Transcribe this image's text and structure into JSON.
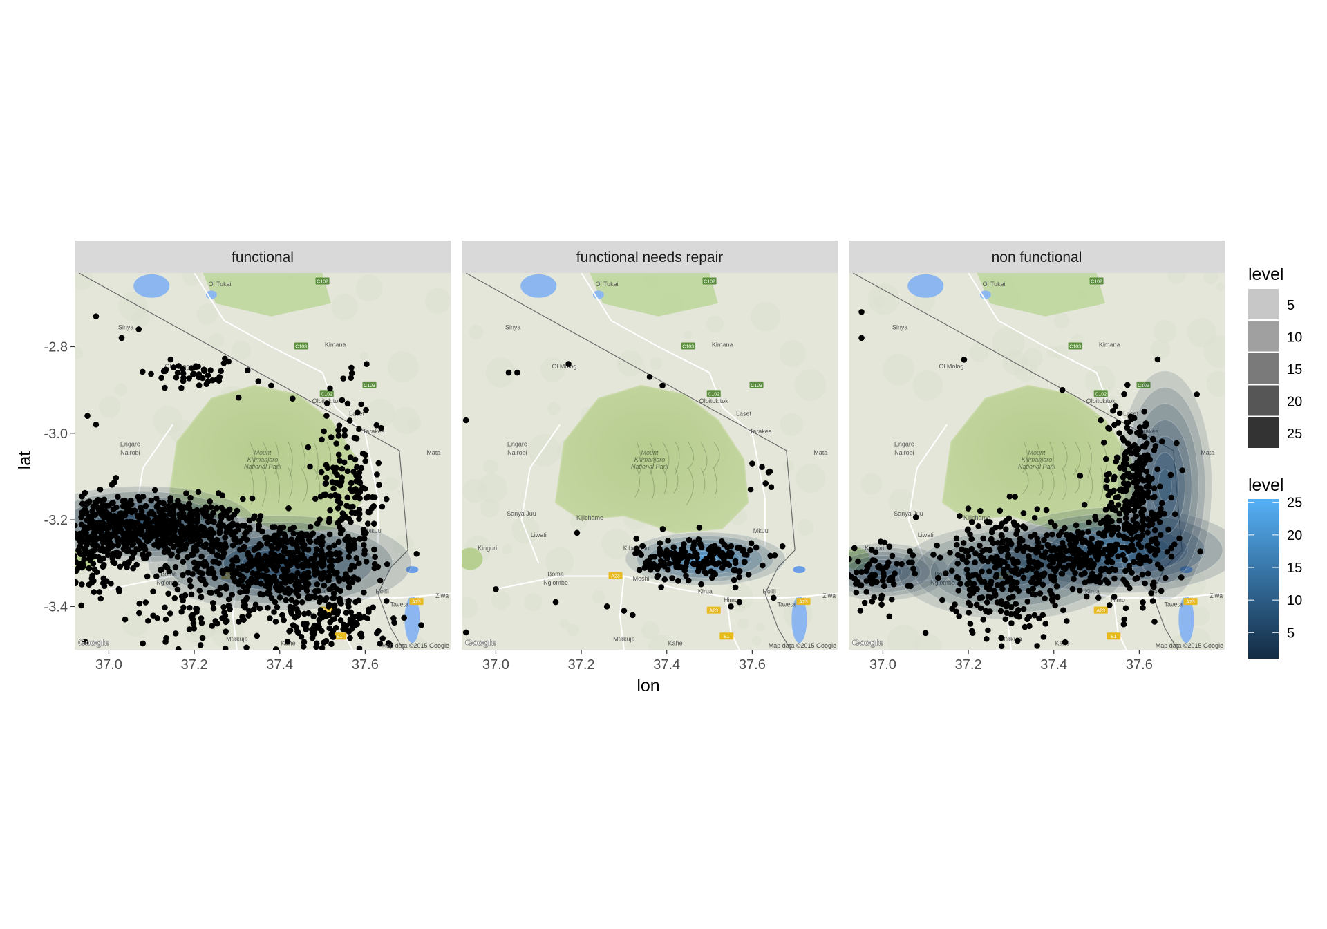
{
  "chart_data": {
    "type": "scatter",
    "xlabel": "lon",
    "ylabel": "lat",
    "xlim": [
      36.92,
      37.8
    ],
    "ylim": [
      -3.5,
      -2.63
    ],
    "x_ticks": [
      {
        "value": 37.0,
        "label": "37.0"
      },
      {
        "value": 37.2,
        "label": "37.2"
      },
      {
        "value": 37.4,
        "label": "37.4"
      },
      {
        "value": 37.6,
        "label": "37.6"
      }
    ],
    "y_ticks": [
      {
        "value": -2.8,
        "label": "-2.8"
      },
      {
        "value": -3.0,
        "label": "-3.0"
      },
      {
        "value": -3.2,
        "label": "-3.2"
      },
      {
        "value": -3.4,
        "label": "-3.4"
      }
    ],
    "basemap": {
      "attribution": "Map data ©2015 Google",
      "provider": "Google",
      "park": {
        "lines": [
          "Mount",
          "Kilimanjaro",
          "National Park"
        ],
        "lon": 37.36,
        "lat": -3.05
      },
      "places": [
        {
          "name": "Ol Tukai",
          "lon": 37.26,
          "lat": -2.66
        },
        {
          "name": "Kimana",
          "lon": 37.53,
          "lat": -2.8
        },
        {
          "name": "Oloitokitok",
          "lon": 37.51,
          "lat": -2.93
        },
        {
          "name": "Laset",
          "lon": 37.58,
          "lat": -2.96
        },
        {
          "name": "Tarakea",
          "lon": 37.62,
          "lat": -3.0
        },
        {
          "name": "Mata",
          "lon": 37.76,
          "lat": -3.05
        },
        {
          "name": "Mkuu",
          "lon": 37.62,
          "lat": -3.23
        },
        {
          "name": "Ol Molog",
          "lon": 37.16,
          "lat": -2.85
        },
        {
          "name": "Sinya",
          "lon": 37.04,
          "lat": -2.76
        },
        {
          "name": "Engare",
          "lon": 37.05,
          "lat": -3.03
        },
        {
          "name": "Nairobi",
          "lon": 37.05,
          "lat": -3.05
        },
        {
          "name": "Sanya Juu",
          "lon": 37.06,
          "lat": -3.19
        },
        {
          "name": "Kijichame",
          "lon": 37.22,
          "lat": -3.2
        },
        {
          "name": "Liwati",
          "lon": 37.1,
          "lat": -3.24
        },
        {
          "name": "Kiboshoni",
          "lon": 37.33,
          "lat": -3.27
        },
        {
          "name": "Kingori",
          "lon": 36.98,
          "lat": -3.27
        },
        {
          "name": "Boma",
          "lon": 37.14,
          "lat": -3.33
        },
        {
          "name": "Ng'ombe",
          "lon": 37.14,
          "lat": -3.35
        },
        {
          "name": "Moshi",
          "lon": 37.34,
          "lat": -3.34
        },
        {
          "name": "Kirua",
          "lon": 37.49,
          "lat": -3.37
        },
        {
          "name": "Himo",
          "lon": 37.55,
          "lat": -3.39
        },
        {
          "name": "Holili",
          "lon": 37.64,
          "lat": -3.37
        },
        {
          "name": "Taveta",
          "lon": 37.68,
          "lat": -3.4
        },
        {
          "name": "Ziwa",
          "lon": 37.78,
          "lat": -3.38
        },
        {
          "name": "Mtakuja",
          "lon": 37.3,
          "lat": -3.48
        },
        {
          "name": "Kahe",
          "lon": 37.42,
          "lat": -3.49
        }
      ],
      "roads": [
        {
          "name": "C102",
          "lon": 37.5,
          "lat": -2.65
        },
        {
          "name": "C103",
          "lon": 37.45,
          "lat": -2.8
        },
        {
          "name": "C103",
          "lon": 37.61,
          "lat": -2.89
        },
        {
          "name": "C102",
          "lon": 37.51,
          "lat": -2.91
        },
        {
          "name": "A23",
          "lon": 37.28,
          "lat": -3.33
        },
        {
          "name": "A23",
          "lon": 37.51,
          "lat": -3.41
        },
        {
          "name": "A23",
          "lon": 37.72,
          "lat": -3.39
        },
        {
          "name": "B1",
          "lon": 37.54,
          "lat": -3.47
        }
      ]
    },
    "panels": [
      {
        "title": "functional",
        "density_peak": 8,
        "density_centers": [
          {
            "lon": 37.4,
            "lat": -3.3,
            "sx": 0.14,
            "sy": 0.05,
            "w": 1.0
          },
          {
            "lon": 37.08,
            "lat": -3.21,
            "sx": 0.12,
            "sy": 0.04,
            "w": 0.9
          }
        ],
        "clusters": [
          {
            "lon": 37.12,
            "lat": -3.22,
            "sx": 0.1,
            "sy": 0.035,
            "n": 520
          },
          {
            "lon": 36.97,
            "lat": -3.25,
            "sx": 0.05,
            "sy": 0.06,
            "n": 220
          },
          {
            "lon": 37.4,
            "lat": -3.3,
            "sx": 0.1,
            "sy": 0.05,
            "n": 460
          },
          {
            "lon": 37.56,
            "lat": -3.15,
            "sx": 0.04,
            "sy": 0.12,
            "n": 180
          },
          {
            "lon": 37.2,
            "lat": -2.86,
            "sx": 0.05,
            "sy": 0.02,
            "n": 45
          },
          {
            "lon": 37.53,
            "lat": -3.44,
            "sx": 0.07,
            "sy": 0.04,
            "n": 130
          },
          {
            "lon": 37.22,
            "lat": -3.4,
            "sx": 0.08,
            "sy": 0.05,
            "n": 90
          }
        ],
        "points": [
          {
            "lon": 36.97,
            "lat": -2.73
          },
          {
            "lon": 37.03,
            "lat": -2.78
          },
          {
            "lon": 37.07,
            "lat": -2.76
          },
          {
            "lon": 37.35,
            "lat": -2.88
          },
          {
            "lon": 37.38,
            "lat": -2.89
          },
          {
            "lon": 37.43,
            "lat": -2.92
          },
          {
            "lon": 36.95,
            "lat": -2.96
          },
          {
            "lon": 36.97,
            "lat": -2.98
          }
        ]
      },
      {
        "title": "functional needs repair",
        "density_peak": 25,
        "density_centers": [
          {
            "lon": 37.49,
            "lat": -3.29,
            "sx": 0.085,
            "sy": 0.028,
            "w": 1.0
          }
        ],
        "clusters": [
          {
            "lon": 37.47,
            "lat": -3.29,
            "sx": 0.07,
            "sy": 0.025,
            "n": 190
          },
          {
            "lon": 37.62,
            "lat": -3.1,
            "sx": 0.015,
            "sy": 0.02,
            "n": 6
          }
        ],
        "points": [
          {
            "lon": 37.03,
            "lat": -2.86
          },
          {
            "lon": 37.05,
            "lat": -2.86
          },
          {
            "lon": 37.17,
            "lat": -2.84
          },
          {
            "lon": 37.36,
            "lat": -2.87
          },
          {
            "lon": 37.39,
            "lat": -2.89
          },
          {
            "lon": 36.93,
            "lat": -2.97
          },
          {
            "lon": 37.26,
            "lat": -3.4
          },
          {
            "lon": 37.3,
            "lat": -3.41
          },
          {
            "lon": 37.14,
            "lat": -3.39
          },
          {
            "lon": 37.32,
            "lat": -3.42
          },
          {
            "lon": 37.0,
            "lat": -3.36
          },
          {
            "lon": 37.55,
            "lat": -3.4
          },
          {
            "lon": 37.57,
            "lat": -3.39
          },
          {
            "lon": 37.65,
            "lat": -3.38
          },
          {
            "lon": 36.93,
            "lat": -3.46
          },
          {
            "lon": 37.6,
            "lat": -3.07
          },
          {
            "lon": 37.19,
            "lat": -3.23
          },
          {
            "lon": 37.58,
            "lat": -3.27
          }
        ]
      },
      {
        "title": "non functional",
        "density_peak": 15,
        "density_centers": [
          {
            "lon": 37.55,
            "lat": -3.27,
            "sx": 0.13,
            "sy": 0.045,
            "w": 1.0
          },
          {
            "lon": 37.66,
            "lat": -3.12,
            "sx": 0.05,
            "sy": 0.12,
            "w": 0.55
          },
          {
            "lon": 37.0,
            "lat": -3.32,
            "sx": 0.07,
            "sy": 0.03,
            "w": 0.4
          },
          {
            "lon": 37.3,
            "lat": -3.32,
            "sx": 0.12,
            "sy": 0.05,
            "w": 0.45
          }
        ],
        "clusters": [
          {
            "lon": 37.59,
            "lat": -3.15,
            "sx": 0.04,
            "sy": 0.11,
            "n": 300
          },
          {
            "lon": 37.47,
            "lat": -3.28,
            "sx": 0.09,
            "sy": 0.04,
            "n": 220
          },
          {
            "lon": 37.28,
            "lat": -3.3,
            "sx": 0.1,
            "sy": 0.06,
            "n": 230
          },
          {
            "lon": 36.98,
            "lat": -3.33,
            "sx": 0.04,
            "sy": 0.03,
            "n": 70
          },
          {
            "lon": 37.3,
            "lat": -3.42,
            "sx": 0.08,
            "sy": 0.04,
            "n": 60
          }
        ],
        "points": [
          {
            "lon": 36.95,
            "lat": -2.72
          },
          {
            "lon": 36.95,
            "lat": -2.78
          },
          {
            "lon": 37.19,
            "lat": -2.83
          },
          {
            "lon": 37.42,
            "lat": -2.9
          },
          {
            "lon": 37.51,
            "lat": -2.97
          },
          {
            "lon": 37.53,
            "lat": -2.99
          }
        ]
      }
    ],
    "legends": [
      {
        "title": "level",
        "kind": "alpha",
        "entries": [
          {
            "label": "5",
            "color": "#c7c7c7"
          },
          {
            "label": "10",
            "color": "#a0a0a0"
          },
          {
            "label": "15",
            "color": "#7a7a7a"
          },
          {
            "label": "20",
            "color": "#565656"
          },
          {
            "label": "25",
            "color": "#333333"
          }
        ]
      },
      {
        "title": "level",
        "kind": "colorbar",
        "low_color": "#132b43",
        "high_color": "#56b1f7",
        "range": [
          1,
          25.5
        ],
        "breaks": [
          {
            "value": 5,
            "label": "5"
          },
          {
            "value": 10,
            "label": "10"
          },
          {
            "value": 15,
            "label": "15"
          },
          {
            "value": 20,
            "label": "20"
          },
          {
            "value": 25,
            "label": "25"
          }
        ]
      }
    ]
  }
}
